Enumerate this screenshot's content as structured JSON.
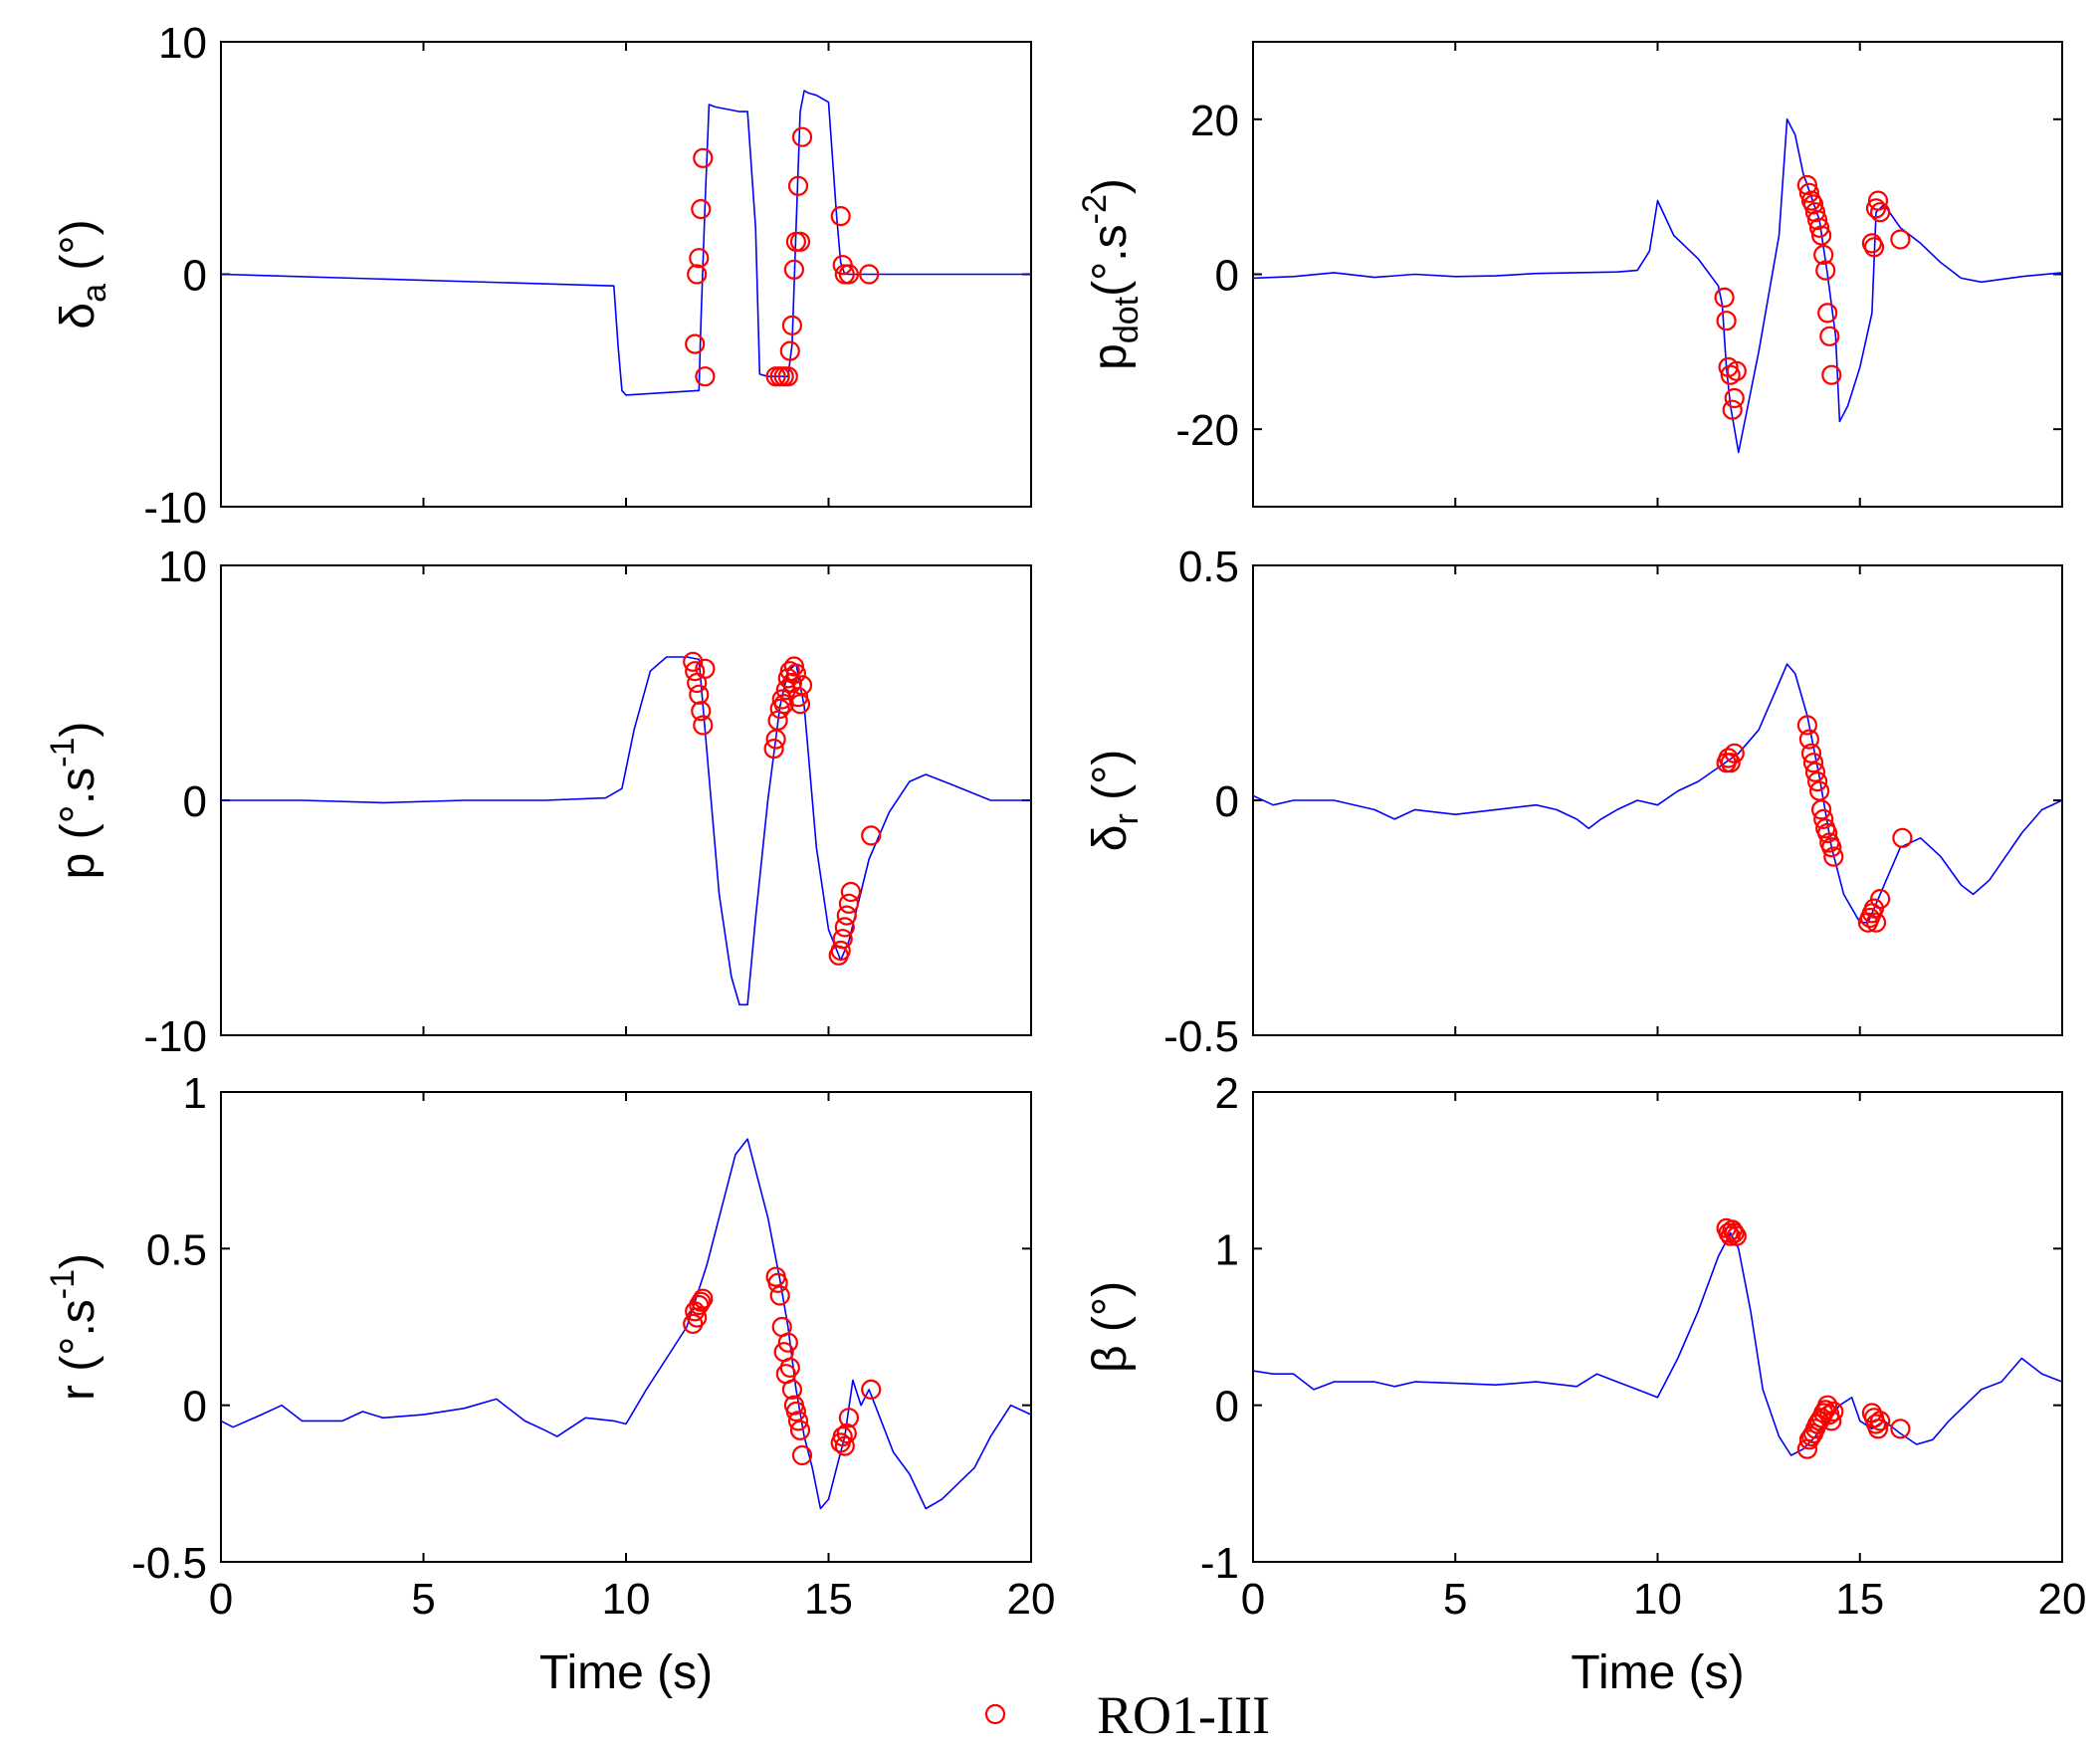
{
  "chart_data": [
    {
      "id": "delta-a",
      "type": "line",
      "ylabel": "δ_a (°)",
      "ylabel_main": "δ",
      "ylabel_sub": "a",
      "ylabel_rest": " (°)",
      "xlabel": "",
      "xlim": [
        0,
        20
      ],
      "ylim": [
        -10,
        10
      ],
      "xticks": [
        "0",
        "5",
        "10",
        "15",
        "20"
      ],
      "yticks": [
        "-10",
        "0",
        "10"
      ],
      "ytick_values": [
        -10,
        0,
        10
      ],
      "show_xtick_labels": false,
      "line": {
        "x": [
          0,
          9.7,
          9.8,
          9.9,
          10.0,
          11.8,
          11.85,
          11.95,
          12.05,
          12.2,
          12.8,
          13.0,
          13.2,
          13.3,
          13.5,
          14.0,
          14.1,
          14.2,
          14.3,
          14.4,
          14.5,
          14.7,
          15.0,
          15.2,
          15.3,
          15.4,
          15.5,
          20
        ],
        "y": [
          0,
          -0.5,
          -3,
          -5,
          -5.2,
          -5,
          -2,
          3,
          7.3,
          7.2,
          7.0,
          7.0,
          2,
          -4.3,
          -4.4,
          -4.4,
          -3,
          2,
          7.0,
          7.9,
          7.8,
          7.7,
          7.4,
          2.5,
          0.5,
          0.0,
          0.0,
          0
        ]
      },
      "markers": {
        "x": [
          11.7,
          11.75,
          11.8,
          11.85,
          11.9,
          11.95,
          13.7,
          13.8,
          13.9,
          14.0,
          14.05,
          14.1,
          14.15,
          14.2,
          14.25,
          14.3,
          14.35,
          15.3,
          15.35,
          15.4,
          15.5,
          16.0
        ],
        "y": [
          -3,
          0,
          0.7,
          2.8,
          5,
          -4.4,
          -4.4,
          -4.4,
          -4.4,
          -4.4,
          -3.3,
          -2.2,
          0.2,
          1.4,
          3.8,
          1.4,
          5.9,
          2.5,
          0.4,
          0.0,
          0.0,
          0.0
        ]
      }
    },
    {
      "id": "p-dot",
      "type": "line",
      "ylabel": "p_dot(°.s^-2)",
      "ylabel_main": "p",
      "ylabel_sub": "dot",
      "ylabel_rest": "(°.s",
      "ylabel_sup": "-2",
      "ylabel_end": ")",
      "xlabel": "",
      "xlim": [
        0,
        20
      ],
      "ylim": [
        -30,
        30
      ],
      "xticks": [
        "0",
        "5",
        "10",
        "15",
        "20"
      ],
      "yticks": [
        "-20",
        "0",
        "20"
      ],
      "ytick_values": [
        -20,
        0,
        20
      ],
      "show_xtick_labels": false,
      "line": {
        "x": [
          0,
          1,
          2,
          3,
          4,
          5,
          6,
          7,
          8,
          9,
          9.5,
          9.8,
          10.0,
          10.4,
          11.0,
          11.5,
          11.6,
          11.7,
          11.8,
          12.0,
          12.5,
          13.0,
          13.2,
          13.4,
          13.6,
          13.8,
          14.0,
          14.2,
          14.4,
          14.5,
          14.7,
          15.0,
          15.3,
          15.4,
          15.6,
          16.0,
          16.5,
          17.0,
          17.5,
          18.0,
          19.0,
          20
        ],
        "y": [
          -0.5,
          -0.3,
          0.2,
          -0.4,
          0.0,
          -0.3,
          -0.2,
          0.1,
          0.2,
          0.3,
          0.5,
          3,
          9.5,
          5,
          2,
          -1.5,
          -4,
          -12,
          -17,
          -23,
          -10,
          5,
          20,
          18,
          13,
          10,
          7,
          0,
          -8,
          -19,
          -17,
          -12,
          -5,
          8,
          9,
          6,
          4,
          1.5,
          -0.5,
          -1,
          -0.3,
          0.2
        ]
      },
      "markers": {
        "x": [
          11.65,
          11.7,
          11.75,
          11.8,
          11.85,
          11.9,
          11.95,
          13.7,
          13.75,
          13.8,
          13.85,
          13.9,
          13.95,
          14.0,
          14.05,
          14.1,
          14.15,
          14.2,
          14.25,
          14.3,
          15.3,
          15.35,
          15.4,
          15.45,
          15.5,
          16.0
        ],
        "y": [
          -3,
          -6,
          -12,
          -13,
          -17.5,
          -16,
          -12.5,
          11.5,
          10.5,
          9.5,
          9,
          8,
          7,
          6,
          5,
          2.5,
          0.5,
          -5,
          -8,
          -13,
          4,
          3.5,
          8.5,
          9.5,
          8,
          4.5
        ]
      }
    },
    {
      "id": "p",
      "type": "line",
      "ylabel": "p (°.s^-1)",
      "ylabel_main": "p (°.s",
      "ylabel_sup": "-1",
      "ylabel_end": ")",
      "xlabel": "",
      "xlim": [
        0,
        20
      ],
      "ylim": [
        -10,
        10
      ],
      "xticks": [
        "0",
        "5",
        "10",
        "15",
        "20"
      ],
      "yticks": [
        "-10",
        "0",
        "10"
      ],
      "ytick_values": [
        -10,
        0,
        10
      ],
      "show_xtick_labels": false,
      "line": {
        "x": [
          0,
          2,
          4,
          6,
          8,
          9.5,
          9.9,
          10.2,
          10.6,
          11.0,
          11.5,
          11.8,
          12.0,
          12.3,
          12.6,
          12.8,
          13.0,
          13.2,
          13.5,
          13.8,
          14.0,
          14.2,
          14.4,
          14.7,
          15.0,
          15.3,
          15.5,
          16.0,
          16.5,
          17.0,
          17.4,
          18.0,
          19.0,
          20
        ],
        "y": [
          0.0,
          0.0,
          -0.1,
          0.0,
          0.0,
          0.1,
          0.5,
          3,
          5.5,
          6.1,
          6.1,
          6.0,
          2,
          -4,
          -7.5,
          -8.7,
          -8.7,
          -5,
          0,
          4,
          5.5,
          5.8,
          4,
          -2,
          -5.5,
          -6.8,
          -6.0,
          -2.5,
          -0.5,
          0.8,
          1.1,
          0.7,
          0.0,
          0.0
        ]
      },
      "markers": {
        "x": [
          11.65,
          11.7,
          11.75,
          11.8,
          11.85,
          11.9,
          11.95,
          13.65,
          13.7,
          13.75,
          13.8,
          13.85,
          13.9,
          13.95,
          14.0,
          14.05,
          14.1,
          14.15,
          14.2,
          14.25,
          14.3,
          14.35,
          15.25,
          15.3,
          15.35,
          15.4,
          15.45,
          15.5,
          15.55,
          16.05
        ],
        "y": [
          5.9,
          5.5,
          5.0,
          4.5,
          3.8,
          3.2,
          5.6,
          2.2,
          2.6,
          3.4,
          3.9,
          4.3,
          4.1,
          4.7,
          5.2,
          5.5,
          5.0,
          5.7,
          5.4,
          4.4,
          4.1,
          4.9,
          -6.6,
          -6.4,
          -5.9,
          -5.4,
          -4.9,
          -4.4,
          -3.9,
          -1.5
        ]
      }
    },
    {
      "id": "delta-r",
      "type": "line",
      "ylabel": "δ_r (°)",
      "ylabel_main": "δ",
      "ylabel_sub": "r",
      "ylabel_rest": " (°)",
      "xlabel": "",
      "xlim": [
        0,
        20
      ],
      "ylim": [
        -0.5,
        0.5
      ],
      "xticks": [
        "0",
        "5",
        "10",
        "15",
        "20"
      ],
      "yticks": [
        "-0.5",
        "0",
        "0.5"
      ],
      "ytick_values": [
        -0.5,
        0,
        0.5
      ],
      "show_xtick_labels": false,
      "line": {
        "x": [
          0,
          0.5,
          1,
          2,
          3,
          3.5,
          4,
          5,
          6,
          7,
          7.5,
          8.0,
          8.3,
          8.6,
          9.0,
          9.5,
          10.0,
          10.5,
          11.0,
          11.5,
          12.0,
          12.5,
          13.0,
          13.2,
          13.4,
          13.7,
          14.0,
          14.3,
          14.6,
          15.0,
          15.2,
          15.5,
          16.0,
          16.5,
          17.0,
          17.5,
          17.8,
          18.2,
          18.6,
          19.0,
          19.5,
          20
        ],
        "y": [
          0.01,
          -0.01,
          0.0,
          0.0,
          -0.02,
          -0.04,
          -0.02,
          -0.03,
          -0.02,
          -0.01,
          -0.02,
          -0.04,
          -0.06,
          -0.04,
          -0.02,
          0.0,
          -0.01,
          0.02,
          0.04,
          0.07,
          0.1,
          0.15,
          0.25,
          0.29,
          0.27,
          0.18,
          0.05,
          -0.1,
          -0.2,
          -0.26,
          -0.26,
          -0.2,
          -0.1,
          -0.08,
          -0.12,
          -0.18,
          -0.2,
          -0.17,
          -0.12,
          -0.07,
          -0.02,
          0.0
        ]
      },
      "markers": {
        "x": [
          11.7,
          11.75,
          11.8,
          11.9,
          13.7,
          13.75,
          13.8,
          13.85,
          13.9,
          13.95,
          14.0,
          14.05,
          14.1,
          14.15,
          14.2,
          14.25,
          14.3,
          14.35,
          15.2,
          15.25,
          15.3,
          15.35,
          15.4,
          15.5,
          16.05
        ],
        "y": [
          0.08,
          0.09,
          0.08,
          0.1,
          0.16,
          0.13,
          0.1,
          0.08,
          0.06,
          0.04,
          0.02,
          -0.02,
          -0.04,
          -0.06,
          -0.07,
          -0.09,
          -0.1,
          -0.12,
          -0.26,
          -0.25,
          -0.24,
          -0.23,
          -0.26,
          -0.21,
          -0.08
        ]
      }
    },
    {
      "id": "r",
      "type": "line",
      "ylabel": "r (°.s^-1)",
      "ylabel_main": "r (°.s",
      "ylabel_sup": "-1",
      "ylabel_end": ")",
      "xlabel": "Time (s)",
      "xlim": [
        0,
        20
      ],
      "ylim": [
        -0.5,
        1
      ],
      "xticks": [
        "0",
        "5",
        "10",
        "15",
        "20"
      ],
      "yticks": [
        "-0.5",
        "0",
        "0.5",
        "1"
      ],
      "ytick_values": [
        -0.5,
        0,
        0.5,
        1
      ],
      "show_xtick_labels": true,
      "line": {
        "x": [
          0,
          0.3,
          1,
          1.5,
          2,
          3,
          3.5,
          4,
          5,
          6,
          6.8,
          7.5,
          8.0,
          8.3,
          9.0,
          9.7,
          10.0,
          10.5,
          11.0,
          11.5,
          12.0,
          12.3,
          12.7,
          13.0,
          13.2,
          13.5,
          13.8,
          14.0,
          14.2,
          14.4,
          14.6,
          14.8,
          15.0,
          15.2,
          15.4,
          15.6,
          15.8,
          16.0,
          16.3,
          16.6,
          17.0,
          17.4,
          17.8,
          18.2,
          18.6,
          19.0,
          19.5,
          20
        ],
        "y": [
          -0.05,
          -0.07,
          -0.03,
          0.0,
          -0.05,
          -0.05,
          -0.02,
          -0.04,
          -0.03,
          -0.01,
          0.02,
          -0.05,
          -0.08,
          -0.1,
          -0.04,
          -0.05,
          -0.06,
          0.05,
          0.15,
          0.25,
          0.45,
          0.6,
          0.8,
          0.85,
          0.75,
          0.6,
          0.4,
          0.25,
          0.05,
          -0.1,
          -0.2,
          -0.33,
          -0.3,
          -0.2,
          -0.1,
          0.08,
          0.0,
          0.05,
          -0.05,
          -0.15,
          -0.22,
          -0.33,
          -0.3,
          -0.25,
          -0.2,
          -0.1,
          0.0,
          -0.03
        ]
      },
      "markers": {
        "x": [
          11.65,
          11.7,
          11.75,
          11.8,
          11.85,
          11.9,
          13.7,
          13.75,
          13.8,
          13.85,
          13.9,
          13.95,
          14.0,
          14.05,
          14.1,
          14.15,
          14.2,
          14.25,
          14.3,
          14.35,
          15.3,
          15.35,
          15.4,
          15.45,
          15.5,
          16.05
        ],
        "y": [
          0.26,
          0.3,
          0.28,
          0.32,
          0.33,
          0.34,
          0.41,
          0.39,
          0.35,
          0.25,
          0.17,
          0.1,
          0.2,
          0.12,
          0.05,
          0.0,
          -0.02,
          -0.05,
          -0.08,
          -0.16,
          -0.12,
          -0.1,
          -0.13,
          -0.09,
          -0.04,
          0.05
        ]
      }
    },
    {
      "id": "beta",
      "type": "line",
      "ylabel": "β (°)",
      "ylabel_main": "β (°)",
      "xlabel": "Time (s)",
      "xlim": [
        0,
        20
      ],
      "ylim": [
        -1,
        2
      ],
      "xticks": [
        "0",
        "5",
        "10",
        "15",
        "20"
      ],
      "yticks": [
        "-1",
        "0",
        "1",
        "2"
      ],
      "ytick_values": [
        -1,
        0,
        1,
        2
      ],
      "show_xtick_labels": true,
      "line": {
        "x": [
          0,
          0.5,
          1,
          1.5,
          2,
          3,
          3.5,
          4,
          5,
          6,
          7,
          8,
          8.5,
          9.0,
          9.5,
          10.0,
          10.5,
          11.0,
          11.5,
          11.8,
          12.0,
          12.3,
          12.6,
          13.0,
          13.3,
          13.6,
          13.9,
          14.2,
          14.5,
          14.8,
          15.0,
          15.3,
          15.6,
          16.0,
          16.4,
          16.8,
          17.2,
          17.6,
          18.0,
          18.5,
          19.0,
          19.5,
          20
        ],
        "y": [
          0.22,
          0.2,
          0.2,
          0.1,
          0.15,
          0.15,
          0.12,
          0.15,
          0.14,
          0.13,
          0.15,
          0.12,
          0.2,
          0.15,
          0.1,
          0.05,
          0.3,
          0.6,
          0.95,
          1.1,
          1.0,
          0.6,
          0.1,
          -0.2,
          -0.32,
          -0.28,
          -0.2,
          -0.1,
          0.0,
          0.05,
          -0.1,
          -0.15,
          -0.1,
          -0.18,
          -0.25,
          -0.22,
          -0.1,
          0.0,
          0.1,
          0.15,
          0.3,
          0.2,
          0.15
        ]
      },
      "markers": {
        "x": [
          11.7,
          11.75,
          11.8,
          11.85,
          11.9,
          11.95,
          13.7,
          13.75,
          13.8,
          13.85,
          13.9,
          13.95,
          14.0,
          14.05,
          14.1,
          14.15,
          14.2,
          14.25,
          14.3,
          14.35,
          15.3,
          15.35,
          15.4,
          15.45,
          15.5,
          16.0
        ],
        "y": [
          1.13,
          1.1,
          1.08,
          1.12,
          1.1,
          1.08,
          -0.28,
          -0.22,
          -0.2,
          -0.18,
          -0.15,
          -0.12,
          -0.1,
          -0.08,
          -0.05,
          -0.03,
          0.0,
          -0.06,
          -0.1,
          -0.04,
          -0.05,
          -0.08,
          -0.12,
          -0.15,
          -0.1,
          -0.15
        ]
      }
    }
  ],
  "legend": {
    "label": "RO1-III",
    "marker_color": "#ff0000"
  },
  "colors": {
    "line": "#0000ff",
    "marker": "#ff0000"
  }
}
